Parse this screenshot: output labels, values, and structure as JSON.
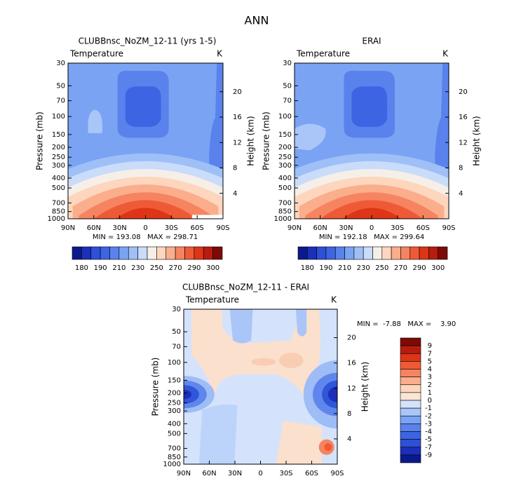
{
  "title": "ANN",
  "chart_data": [
    {
      "type": "contour",
      "title": "CLUBBnsc_NoZM_12-11 (yrs 1-5)",
      "subtitle": "Temperature",
      "units": "K",
      "stats": "MIN = 193.08   MAX = 298.71",
      "xlim": [
        90,
        -90
      ],
      "xticks": [
        {
          "value": 90,
          "label": "90N"
        },
        {
          "value": 60,
          "label": "60N"
        },
        {
          "value": 30,
          "label": "30N"
        },
        0,
        {
          "value": -30,
          "label": "30S"
        },
        {
          "value": -60,
          "label": "60S"
        },
        {
          "value": -90,
          "label": "90S"
        }
      ],
      "ylabel": "Pressure (mb)",
      "ylim": [
        1000,
        30
      ],
      "log_y": true,
      "yticks": [
        30,
        50,
        70,
        100,
        150,
        200,
        250,
        300,
        400,
        500,
        700,
        850,
        1000
      ],
      "y2label": "Height (km)",
      "y2lim": [
        0,
        24.5
      ],
      "y2ticks": [
        4,
        8,
        12,
        16,
        20
      ],
      "colorbar": {
        "orientation": "horizontal",
        "levels": [
          180,
          null,
          190,
          null,
          210,
          null,
          230,
          null,
          250,
          null,
          270,
          null,
          290,
          null,
          300
        ],
        "colors": [
          "#0a1a8c",
          "#1c2fb8",
          "#2f4fd6",
          "#3d64e3",
          "#5a82ec",
          "#7aa3f3",
          "#9fbff7",
          "#c9dcfa",
          "#f6efe8",
          "#fdd6bd",
          "#fbae8c",
          "#f68460",
          "#ef5a36",
          "#dd3515",
          "#b81c0e",
          "#7e0a05"
        ]
      }
    },
    {
      "type": "contour",
      "title": "ERAI",
      "subtitle": "Temperature",
      "units": "K",
      "stats": "MIN = 192.18   MAX = 299.64",
      "xlim": [
        90,
        -90
      ],
      "xticks": [
        {
          "value": 90,
          "label": "90N"
        },
        {
          "value": 60,
          "label": "60N"
        },
        {
          "value": 30,
          "label": "30N"
        },
        0,
        {
          "value": -30,
          "label": "30S"
        },
        {
          "value": -60,
          "label": "60S"
        },
        {
          "value": -90,
          "label": "90S"
        }
      ],
      "ylabel": "Pressure (mb)",
      "ylim": [
        1000,
        30
      ],
      "log_y": true,
      "yticks": [
        30,
        50,
        70,
        100,
        150,
        200,
        250,
        300,
        400,
        500,
        700,
        850,
        1000
      ],
      "y2label": "Height (km)",
      "y2lim": [
        0,
        24.5
      ],
      "y2ticks": [
        4,
        8,
        12,
        16,
        20
      ],
      "colorbar": {
        "orientation": "horizontal",
        "levels": [
          180,
          null,
          190,
          null,
          210,
          null,
          230,
          null,
          250,
          null,
          270,
          null,
          290,
          null,
          300
        ],
        "colors": [
          "#0a1a8c",
          "#1c2fb8",
          "#2f4fd6",
          "#3d64e3",
          "#5a82ec",
          "#7aa3f3",
          "#9fbff7",
          "#c9dcfa",
          "#f6efe8",
          "#fdd6bd",
          "#fbae8c",
          "#f68460",
          "#ef5a36",
          "#dd3515",
          "#b81c0e",
          "#7e0a05"
        ]
      }
    },
    {
      "type": "contour",
      "title": "CLUBBnsc_NoZM_12-11 - ERAI",
      "subtitle": "Temperature",
      "units": "K",
      "stats": "MIN =  -7.88   MAX =    3.90",
      "xlim": [
        90,
        -90
      ],
      "xticks": [
        {
          "value": 90,
          "label": "90N"
        },
        {
          "value": 60,
          "label": "60N"
        },
        {
          "value": 30,
          "label": "30N"
        },
        0,
        {
          "value": -30,
          "label": "30S"
        },
        {
          "value": -60,
          "label": "60S"
        },
        {
          "value": -90,
          "label": "90S"
        }
      ],
      "ylabel": "Pressure (mb)",
      "ylim": [
        1000,
        30
      ],
      "log_y": true,
      "yticks": [
        30,
        50,
        70,
        100,
        150,
        200,
        250,
        300,
        400,
        500,
        700,
        850,
        1000
      ],
      "y2label": "Height (km)",
      "y2lim": [
        0,
        24.5
      ],
      "y2ticks": [
        4,
        8,
        12,
        16,
        20
      ],
      "colorbar": {
        "orientation": "vertical",
        "levels": [
          9,
          7,
          5,
          4,
          3,
          2,
          1,
          0,
          -1,
          -2,
          -3,
          -4,
          -5,
          -7,
          -9
        ],
        "colors": [
          "#7e0a05",
          "#b81c0e",
          "#dd3515",
          "#ef5a36",
          "#f68460",
          "#fbae8c",
          "#fdd6bd",
          "#fbe6d6",
          "#d4e3fb",
          "#aac6f8",
          "#7aa3f3",
          "#5a82ec",
          "#3d64e3",
          "#2f4fd6",
          "#1c2fb8",
          "#0a1a8c"
        ]
      }
    }
  ]
}
